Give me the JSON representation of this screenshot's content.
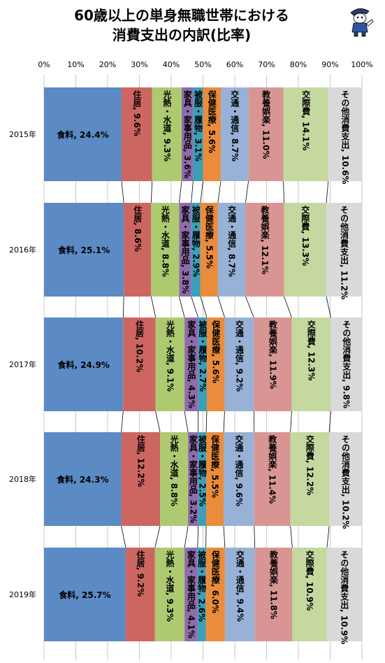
{
  "title_lines": [
    "60歳以上の単身無職世帯における",
    "消費支出の内訳(比率)"
  ],
  "chart_data": {
    "type": "bar",
    "orientation": "horizontal",
    "stacked": "percent",
    "categories": [
      "2015年",
      "2016年",
      "2017年",
      "2018年",
      "2019年"
    ],
    "x_ticks": [
      "0%",
      "10%",
      "20%",
      "30%",
      "40%",
      "50%",
      "60%",
      "70%",
      "80%",
      "90%",
      "100%"
    ],
    "xlim": [
      0,
      100
    ],
    "grid": true,
    "legend": "none",
    "series": [
      {
        "name": "食料",
        "color": "#5b8ac4",
        "label_style": "horizontal",
        "values": [
          24.4,
          25.1,
          24.9,
          24.3,
          25.7
        ]
      },
      {
        "name": "住居",
        "color": "#cd6661",
        "label_style": "vertical",
        "values": [
          9.6,
          8.6,
          10.2,
          12.2,
          9.2
        ]
      },
      {
        "name": "光熱・水道",
        "color": "#aeca71",
        "label_style": "vertical",
        "values": [
          9.3,
          8.8,
          9.1,
          8.8,
          9.3
        ]
      },
      {
        "name": "家具・家事用品",
        "color": "#8f6bad",
        "label_style": "vertical",
        "values": [
          3.6,
          3.8,
          4.3,
          3.2,
          4.1
        ]
      },
      {
        "name": "被服・履物",
        "color": "#3aa0b8",
        "label_style": "vertical",
        "values": [
          3.1,
          2.9,
          2.7,
          2.5,
          2.6
        ]
      },
      {
        "name": "保健医療",
        "color": "#eb8c3c",
        "label_style": "vertical",
        "values": [
          5.6,
          5.5,
          5.6,
          5.5,
          6.0
        ]
      },
      {
        "name": "交通・通信",
        "color": "#98b2d7",
        "label_style": "vertical",
        "values": [
          8.7,
          8.7,
          9.2,
          9.6,
          9.4
        ]
      },
      {
        "name": "教養娯楽",
        "color": "#d89593",
        "label_style": "vertical",
        "values": [
          11.0,
          12.1,
          11.9,
          11.4,
          11.8
        ]
      },
      {
        "name": "交際費",
        "color": "#c4d8a0",
        "label_style": "vertical",
        "values": [
          14.1,
          13.3,
          12.3,
          12.2,
          10.9
        ]
      },
      {
        "name": "その他消費支出",
        "color": "#d9d9d9",
        "label_style": "vertical",
        "values": [
          10.6,
          11.2,
          9.8,
          10.2,
          10.9
        ]
      }
    ]
  }
}
